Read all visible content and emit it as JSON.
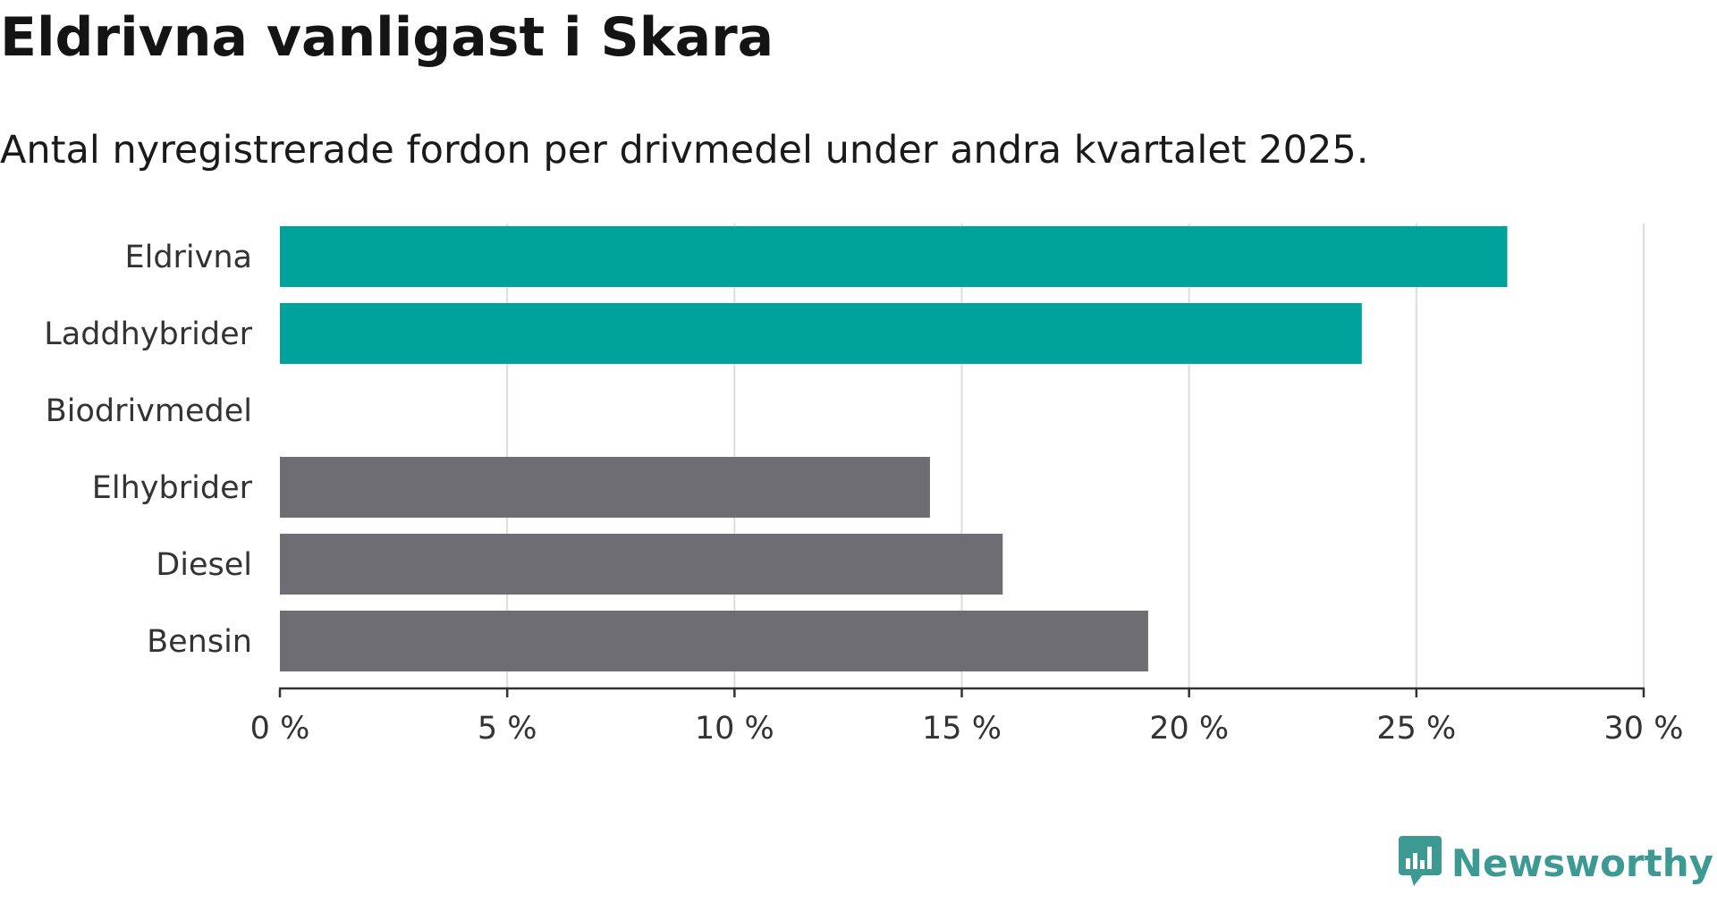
{
  "title": "Eldrivna vanligast i Skara",
  "subtitle": "Antal nyregistrerade fordon per drivmedel under andra kvartalet 2025.",
  "brand": {
    "name": "Newsworthy",
    "color": "#3d9a92",
    "icon": "bar-chart-speech-bubble-icon"
  },
  "chart_data": {
    "type": "bar",
    "orientation": "horizontal",
    "categories": [
      "Eldrivna",
      "Laddhybrider",
      "Biodrivmedel",
      "Elhybrider",
      "Diesel",
      "Bensin"
    ],
    "values": [
      27.0,
      23.8,
      0,
      14.3,
      15.9,
      19.1
    ],
    "bar_colors": [
      "#00a39b",
      "#00a39b",
      "#00a39b",
      "#6e6d73",
      "#6e6d73",
      "#6e6d73"
    ],
    "xlim": [
      0,
      30
    ],
    "x_ticks": [
      0,
      5,
      10,
      15,
      20,
      25,
      30
    ],
    "x_tick_labels": [
      "0 %",
      "5 %",
      "10 %",
      "15 %",
      "20 %",
      "25 %",
      "30 %"
    ],
    "xlabel": "",
    "ylabel": "",
    "grid": "vertical",
    "legend": "none"
  }
}
